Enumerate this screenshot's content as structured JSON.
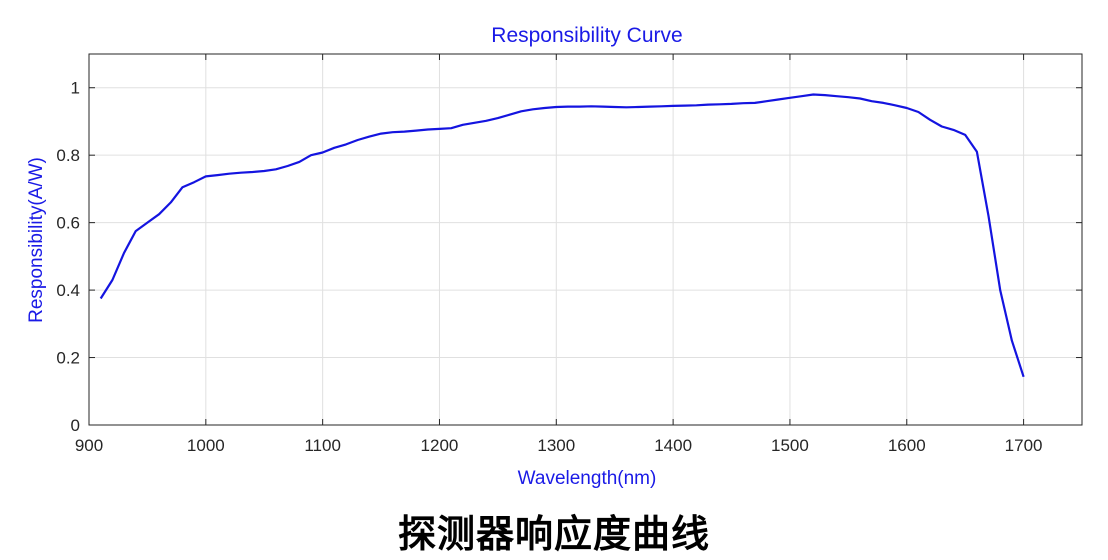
{
  "caption": "探测器响应度曲线",
  "colors": {
    "series": "#1414e0",
    "label": "#1a1ae6",
    "axis": "#262626",
    "grid": "#e0e0e0"
  },
  "chart_data": {
    "type": "line",
    "title": "Responsibility Curve",
    "xlabel": "Wavelength(nm)",
    "ylabel": "Responsibility(A/W)",
    "xlim": [
      900,
      1750
    ],
    "ylim": [
      0,
      1.1
    ],
    "xticks": [
      900,
      1000,
      1100,
      1200,
      1300,
      1400,
      1500,
      1600,
      1700
    ],
    "yticks": [
      0,
      0.2,
      0.4,
      0.6,
      0.8,
      1
    ],
    "xtick_labels": [
      "900",
      "1000",
      "1100",
      "1200",
      "1300",
      "1400",
      "1500",
      "1600",
      "1700"
    ],
    "ytick_labels": [
      "0",
      "0.2",
      "0.4",
      "0.6",
      "0.8",
      "1"
    ],
    "grid": true,
    "series": [
      {
        "x": [
          910,
          920,
          930,
          940,
          950,
          960,
          970,
          980,
          990,
          1000,
          1010,
          1020,
          1030,
          1040,
          1050,
          1060,
          1070,
          1080,
          1090,
          1100,
          1110,
          1120,
          1130,
          1140,
          1150,
          1160,
          1170,
          1180,
          1190,
          1200,
          1210,
          1220,
          1230,
          1240,
          1250,
          1260,
          1270,
          1280,
          1290,
          1300,
          1310,
          1320,
          1330,
          1340,
          1350,
          1360,
          1370,
          1380,
          1390,
          1400,
          1410,
          1420,
          1430,
          1440,
          1450,
          1460,
          1470,
          1480,
          1490,
          1500,
          1510,
          1520,
          1530,
          1540,
          1550,
          1560,
          1570,
          1580,
          1590,
          1600,
          1610,
          1620,
          1630,
          1640,
          1650,
          1660,
          1670,
          1680,
          1690,
          1700
        ],
        "y": [
          0.375,
          0.43,
          0.51,
          0.575,
          0.6,
          0.625,
          0.66,
          0.705,
          0.72,
          0.737,
          0.741,
          0.745,
          0.748,
          0.75,
          0.753,
          0.758,
          0.768,
          0.78,
          0.8,
          0.808,
          0.822,
          0.832,
          0.845,
          0.855,
          0.864,
          0.868,
          0.87,
          0.873,
          0.876,
          0.878,
          0.88,
          0.89,
          0.896,
          0.902,
          0.91,
          0.92,
          0.93,
          0.936,
          0.94,
          0.943,
          0.944,
          0.944,
          0.945,
          0.944,
          0.943,
          0.942,
          0.943,
          0.944,
          0.945,
          0.946,
          0.947,
          0.948,
          0.95,
          0.951,
          0.952,
          0.954,
          0.955,
          0.96,
          0.965,
          0.97,
          0.975,
          0.98,
          0.978,
          0.975,
          0.972,
          0.968,
          0.96,
          0.955,
          0.948,
          0.94,
          0.928,
          0.905,
          0.885,
          0.875,
          0.86,
          0.81,
          0.62,
          0.4,
          0.25,
          0.143
        ]
      }
    ]
  }
}
